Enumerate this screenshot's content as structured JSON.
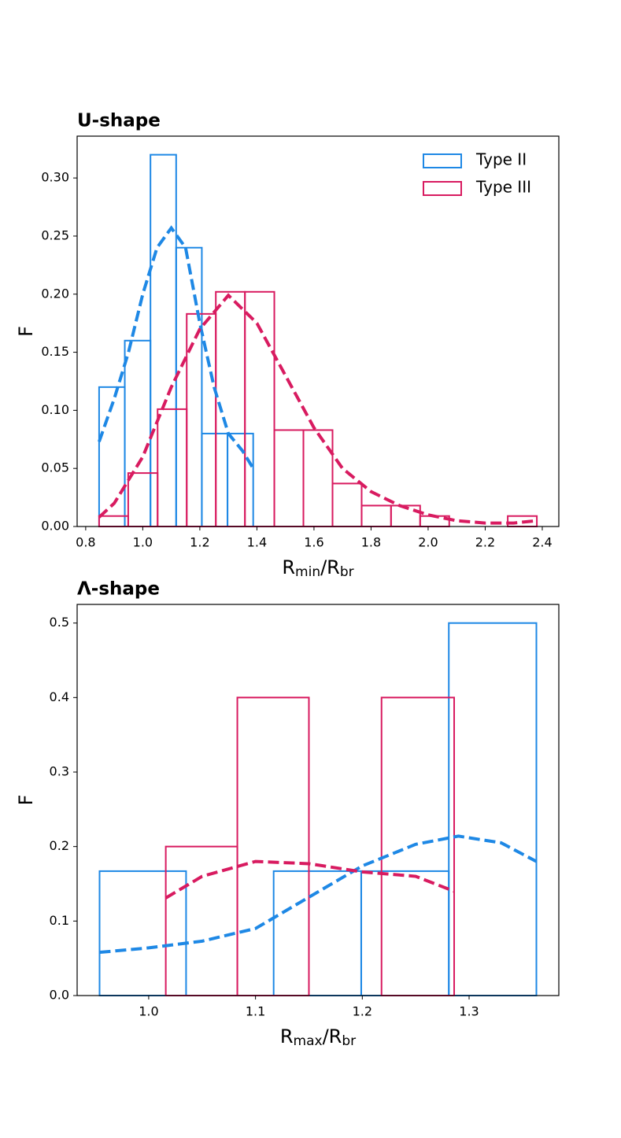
{
  "chart_data": [
    {
      "type": "histogram",
      "title": "U-shape",
      "xlabel": [
        {
          "text": "R"
        },
        {
          "text": "min",
          "subscript": true
        },
        {
          "text": "/R"
        },
        {
          "text": "br",
          "subscript": true
        }
      ],
      "ylabel": "F",
      "xlim": [
        0.77,
        2.458
      ],
      "ylim": [
        0,
        0.336
      ],
      "xticks": [
        0.8,
        {
          "value": 1.0,
          "label": "1.0"
        },
        1.2,
        1.4,
        1.6,
        1.8,
        {
          "value": 2.0,
          "label": "2.0"
        },
        2.2,
        2.4
      ],
      "yticks": [
        {
          "value": 0,
          "label": "0.00"
        },
        0.05,
        {
          "value": 0.1,
          "label": "0.10"
        },
        0.15,
        {
          "value": 0.2,
          "label": "0.20"
        },
        0.25,
        {
          "value": 0.3,
          "label": "0.30"
        }
      ],
      "legend": "upper right",
      "series": [
        {
          "name": "Type II",
          "color": "#1e88e5",
          "bins": [
            0.847,
            0.937,
            1.027,
            1.117,
            1.207,
            1.297,
            1.387
          ],
          "values": [
            0.12,
            0.16,
            0.32,
            0.24,
            0.08,
            0.08
          ],
          "kde": {
            "x": [
              0.847,
              0.9,
              0.95,
              1.0,
              1.05,
              1.1,
              1.15,
              1.2,
              1.25,
              1.3,
              1.35,
              1.387
            ],
            "values": [
              0.073,
              0.11,
              0.15,
              0.2,
              0.24,
              0.257,
              0.24,
              0.175,
              0.12,
              0.08,
              0.065,
              0.05
            ]
          }
        },
        {
          "name": "Type III",
          "color": "#d81b60",
          "bins": [
            0.847,
            0.949,
            1.052,
            1.154,
            1.256,
            1.358,
            1.461,
            1.563,
            1.665,
            1.767,
            1.87,
            1.972,
            2.074,
            2.176,
            2.279,
            2.381
          ],
          "values": [
            0.009,
            0.046,
            0.101,
            0.183,
            0.202,
            0.202,
            0.083,
            0.083,
            0.037,
            0.018,
            0.018,
            0.009,
            0,
            0,
            0.009
          ],
          "kde": {
            "x": [
              0.847,
              0.9,
              1.0,
              1.1,
              1.2,
              1.3,
              1.4,
              1.5,
              1.6,
              1.7,
              1.8,
              1.9,
              2.0,
              2.1,
              2.2,
              2.3,
              2.381
            ],
            "values": [
              0.008,
              0.02,
              0.06,
              0.12,
              0.17,
              0.199,
              0.175,
              0.13,
              0.085,
              0.05,
              0.03,
              0.018,
              0.01,
              0.005,
              0.003,
              0.003,
              0.005
            ]
          }
        }
      ]
    },
    {
      "type": "histogram",
      "title": "Λ-shape",
      "xlabel": [
        {
          "text": "R"
        },
        {
          "text": "max",
          "subscript": true
        },
        {
          "text": "/R"
        },
        {
          "text": "br",
          "subscript": true
        }
      ],
      "ylabel": "F",
      "xlim": [
        0.933,
        1.384
      ],
      "ylim": [
        0,
        0.525
      ],
      "xticks": [
        {
          "value": 1.0,
          "label": "1.0"
        },
        1.1,
        1.2,
        1.3
      ],
      "yticks": [
        {
          "value": 0,
          "label": "0.0"
        },
        0.1,
        0.2,
        0.3,
        0.4,
        0.5
      ],
      "series": [
        {
          "color": "#1e88e5",
          "bins": [
            0.954,
            1.035,
            1.117,
            1.199,
            1.281,
            1.363
          ],
          "values": [
            0.167,
            0,
            0.167,
            0.167,
            0.5
          ],
          "kde": {
            "x": [
              0.954,
              1.0,
              1.05,
              1.1,
              1.15,
              1.2,
              1.25,
              1.29,
              1.33,
              1.363
            ],
            "values": [
              0.058,
              0.064,
              0.073,
              0.09,
              0.132,
              0.174,
              0.203,
              0.214,
              0.205,
              0.18
            ]
          }
        },
        {
          "color": "#d81b60",
          "bins": [
            1.016,
            1.083,
            1.15,
            1.218,
            1.286
          ],
          "values": [
            0.2,
            0.4,
            0,
            0.4
          ],
          "kde": {
            "x": [
              1.016,
              1.05,
              1.1,
              1.15,
              1.2,
              1.25,
              1.286
            ],
            "values": [
              0.131,
              0.16,
              0.18,
              0.177,
              0.166,
              0.16,
              0.14
            ]
          }
        }
      ]
    }
  ]
}
